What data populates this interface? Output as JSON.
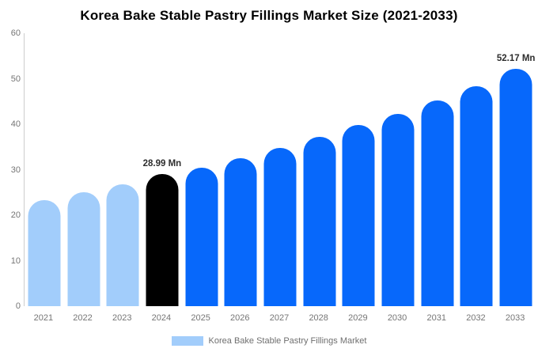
{
  "chart_data": {
    "type": "bar",
    "title": "Korea Bake Stable Pastry Fillings Market Size (2021-2033)",
    "categories": [
      "2021",
      "2022",
      "2023",
      "2024",
      "2025",
      "2026",
      "2027",
      "2028",
      "2029",
      "2030",
      "2031",
      "2032",
      "2033"
    ],
    "values": [
      23.3,
      25.0,
      26.7,
      28.99,
      30.4,
      32.5,
      34.8,
      37.3,
      39.8,
      42.3,
      45.2,
      48.4,
      52.17
    ],
    "unit": "Mn",
    "bar_colors": [
      "#a2cdfb",
      "#a2cdfb",
      "#a2cdfb",
      "#000000",
      "#0768fb",
      "#0768fb",
      "#0768fb",
      "#0768fb",
      "#0768fb",
      "#0768fb",
      "#0768fb",
      "#0768fb",
      "#0768fb"
    ],
    "annotations": [
      {
        "category": "2024",
        "text": "28.99 Mn"
      },
      {
        "category": "2033",
        "text": "52.17 Mn"
      }
    ],
    "xlabel": "",
    "ylabel": "",
    "ylim": [
      0,
      60
    ],
    "yticks": [
      0,
      10,
      20,
      30,
      40,
      50,
      60
    ],
    "grid": "off",
    "legend_position": "bottom",
    "legend_label": "Korea Bake Stable Pastry Fillings Market",
    "colors": {
      "historical": "#a2cdfb",
      "base_year": "#000000",
      "forecast": "#0768fb",
      "axis_line": "#cccccc",
      "tick_text": "#757575",
      "annotation_text": "#2d2d2d",
      "background": "#ffffff"
    }
  }
}
